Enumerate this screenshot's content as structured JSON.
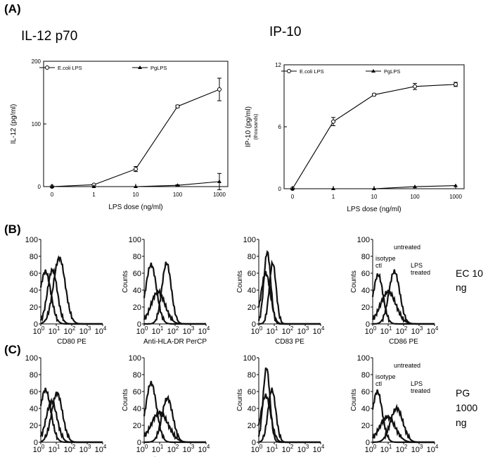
{
  "panel_labels": [
    "(A)",
    "(B)",
    "(C)"
  ],
  "row_labels": {
    "B": [
      "EC 10",
      "ng"
    ],
    "C": [
      "PG",
      "1000",
      "ng"
    ]
  },
  "chart_data": [
    {
      "type": "line",
      "title": "IL-12 p70",
      "xlabel": "LPS dose (ng/ml)",
      "ylabel": "IL-12 (pg/ml)",
      "x": [
        "0",
        "1",
        "10",
        "100",
        "1000"
      ],
      "ylim": [
        0,
        200
      ],
      "yticks": [
        "0",
        "100",
        "200"
      ],
      "legend": "top",
      "series": [
        {
          "name": "E.coli LPS",
          "marker": "circle",
          "values": [
            0,
            3,
            28,
            128,
            155
          ],
          "err": [
            0,
            1,
            4,
            2,
            18
          ]
        },
        {
          "name": "PgLPS",
          "marker": "triangle",
          "values": [
            0,
            0,
            0,
            2,
            8
          ],
          "err": [
            0,
            0,
            0,
            1,
            13
          ]
        }
      ]
    },
    {
      "type": "line",
      "title": "IP-10",
      "xlabel": "LPS dose (ng/ml)",
      "ylabel": "IP-10 (pg/ml)",
      "ylabel2": "(thousands)",
      "x": [
        "0",
        "1",
        "10",
        "100",
        "1000"
      ],
      "ylim": [
        0,
        12
      ],
      "yticks": [
        "0",
        "6",
        "12"
      ],
      "legend": "top",
      "series": [
        {
          "name": "E.coli LPS",
          "marker": "circle",
          "values": [
            0,
            6.5,
            9.1,
            9.9,
            10.1
          ],
          "err": [
            0,
            0.4,
            0.1,
            0.3,
            0.2
          ]
        },
        {
          "name": "PgLPS",
          "marker": "triangle",
          "values": [
            0,
            0,
            0,
            0.2,
            0.3
          ],
          "err": [
            0,
            0,
            0,
            0,
            0
          ]
        }
      ]
    }
  ],
  "histograms": {
    "yticks": [
      "0",
      "20",
      "40",
      "60",
      "80",
      "100"
    ],
    "xticks": [
      "0",
      "1",
      "2",
      "3",
      "4"
    ],
    "x_base": "10",
    "ylabel": "Counts",
    "xlabels": [
      "CD80 PE",
      "Anti-HLA-DR PerCP",
      "CD83 PE",
      "CD86 PE"
    ],
    "annotations": {
      "isotype": [
        "isotype",
        "ctl"
      ],
      "untreated": [
        "untreated"
      ],
      "lps": [
        "LPS",
        "treated"
      ]
    }
  }
}
